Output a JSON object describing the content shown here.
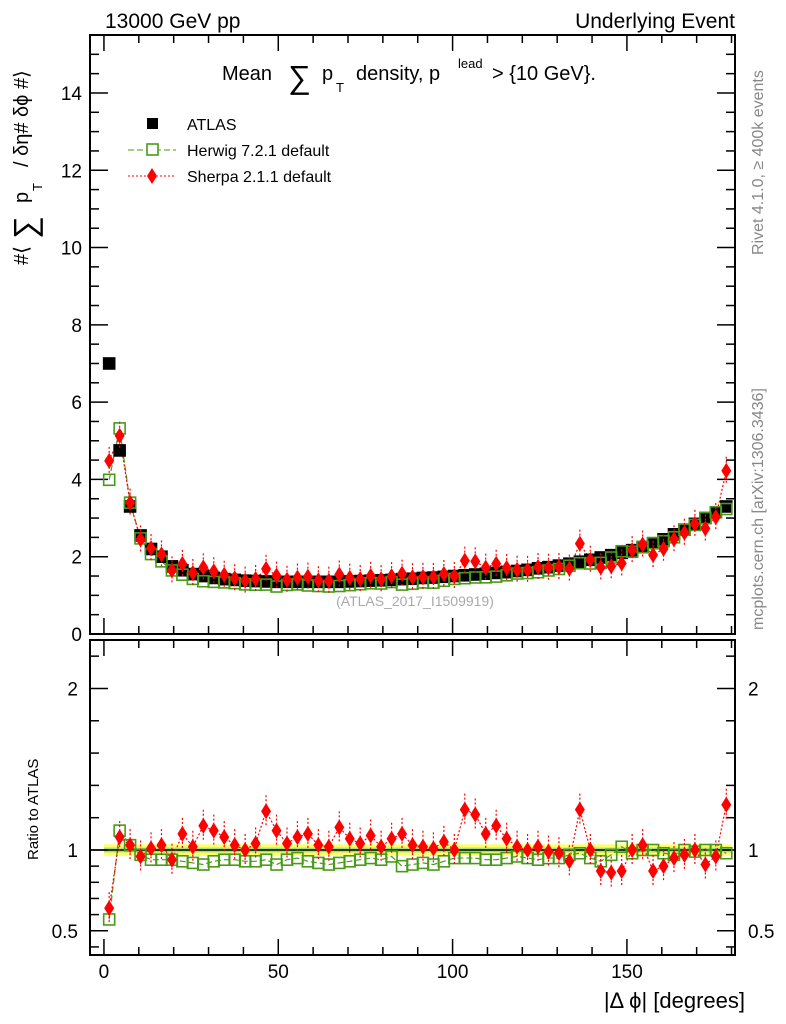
{
  "header": {
    "left": "13000 GeV pp",
    "right": "Underlying Event"
  },
  "side": {
    "rivet": "Rivet 4.1.0, ≥ 400k events",
    "mcplots": "mcplots.cern.ch [arXiv:1306.3436]"
  },
  "chart_data": {
    "type": "scatter",
    "title": "Mean ∑ p_T density, p_T^lead > {10 GeV}.",
    "title_parts": {
      "a": "Mean",
      "sum": "∑",
      "p": "p",
      "T": "T",
      "b": "density, p",
      "lead": "lead",
      "c": "> {10 GeV}."
    },
    "ylabel_parts": {
      "a": "#⟨",
      "sum": "∑",
      "p": "p",
      "T": "T",
      "b": "/ δη# δϕ #⟩"
    },
    "xlabel": "|Δ ϕ| [degrees]",
    "ratio_ylabel": "Ratio to ATLAS",
    "watermark": "(ATLAS_2017_I1509919)",
    "xlim": [
      -4,
      181
    ],
    "ylim": [
      0,
      15.5
    ],
    "ratio_ylim": [
      0.35,
      2.3
    ],
    "xticks": [
      "0",
      "50",
      "100",
      "150"
    ],
    "yticks": [
      "0",
      "2",
      "4",
      "6",
      "8",
      "10",
      "12",
      "14"
    ],
    "ratio_yticks": [
      "0.5",
      "1",
      "2"
    ],
    "legend_position": "top-left",
    "x": [
      1.5,
      4.5,
      7.5,
      10.5,
      13.5,
      16.5,
      19.5,
      22.5,
      25.5,
      28.5,
      31.5,
      34.5,
      37.5,
      40.5,
      43.5,
      46.5,
      49.5,
      52.5,
      55.5,
      58.5,
      61.5,
      64.5,
      67.5,
      70.5,
      73.5,
      76.5,
      79.5,
      82.5,
      85.5,
      88.5,
      91.5,
      94.5,
      97.5,
      100.5,
      103.5,
      106.5,
      109.5,
      112.5,
      115.5,
      118.5,
      121.5,
      124.5,
      127.5,
      130.5,
      133.5,
      136.5,
      139.5,
      142.5,
      145.5,
      148.5,
      151.5,
      154.5,
      157.5,
      160.5,
      163.5,
      166.5,
      169.5,
      172.5,
      175.5,
      178.5
    ],
    "series": [
      {
        "name": "ATLAS",
        "color": "#000000",
        "values": [
          7.0,
          4.75,
          3.3,
          2.55,
          2.2,
          2.0,
          1.75,
          1.65,
          1.55,
          1.5,
          1.45,
          1.42,
          1.4,
          1.38,
          1.37,
          1.36,
          1.35,
          1.35,
          1.35,
          1.35,
          1.35,
          1.35,
          1.35,
          1.36,
          1.37,
          1.38,
          1.39,
          1.4,
          1.42,
          1.43,
          1.45,
          1.46,
          1.48,
          1.5,
          1.52,
          1.54,
          1.56,
          1.58,
          1.6,
          1.63,
          1.66,
          1.7,
          1.73,
          1.77,
          1.82,
          1.87,
          1.92,
          1.98,
          2.04,
          2.1,
          2.17,
          2.25,
          2.35,
          2.45,
          2.58,
          2.7,
          2.85,
          3.0,
          3.15,
          3.3
        ]
      },
      {
        "name": "Herwig 7.2.1 default",
        "color": "#4a9a1a",
        "ratio": [
          0.57,
          1.12,
          1.03,
          0.97,
          0.94,
          0.94,
          0.94,
          0.93,
          0.92,
          0.91,
          0.93,
          0.94,
          0.94,
          0.93,
          0.93,
          0.94,
          0.91,
          0.94,
          0.95,
          0.93,
          0.92,
          0.91,
          0.92,
          0.93,
          0.94,
          0.95,
          0.94,
          0.96,
          0.9,
          0.91,
          0.92,
          0.91,
          0.93,
          0.95,
          0.95,
          0.95,
          0.94,
          0.94,
          0.95,
          0.96,
          0.95,
          0.94,
          0.95,
          0.95,
          0.97,
          0.98,
          0.95,
          0.93,
          0.97,
          1.02,
          0.98,
          1.0,
          1.0,
          0.98,
          0.97,
          1.0,
          0.99,
          1.0,
          1.0,
          0.98
        ]
      },
      {
        "name": "Sherpa 2.1.1 default",
        "color": "#ff0000",
        "ratio": [
          0.64,
          1.08,
          1.03,
          0.96,
          1.01,
          1.03,
          0.94,
          1.1,
          1.02,
          1.15,
          1.12,
          1.08,
          1.03,
          1.0,
          1.04,
          1.24,
          1.12,
          1.04,
          1.08,
          1.1,
          1.03,
          1.02,
          1.14,
          1.07,
          1.04,
          1.09,
          1.02,
          1.07,
          1.1,
          1.03,
          1.02,
          1.01,
          1.05,
          1.0,
          1.25,
          1.22,
          1.1,
          1.15,
          1.07,
          1.02,
          1.0,
          1.02,
          0.99,
          0.98,
          0.93,
          1.25,
          1.0,
          0.87,
          0.86,
          0.87,
          1.0,
          1.03,
          0.87,
          0.9,
          0.95,
          0.97,
          1.0,
          0.91,
          0.96,
          1.28
        ]
      }
    ]
  }
}
